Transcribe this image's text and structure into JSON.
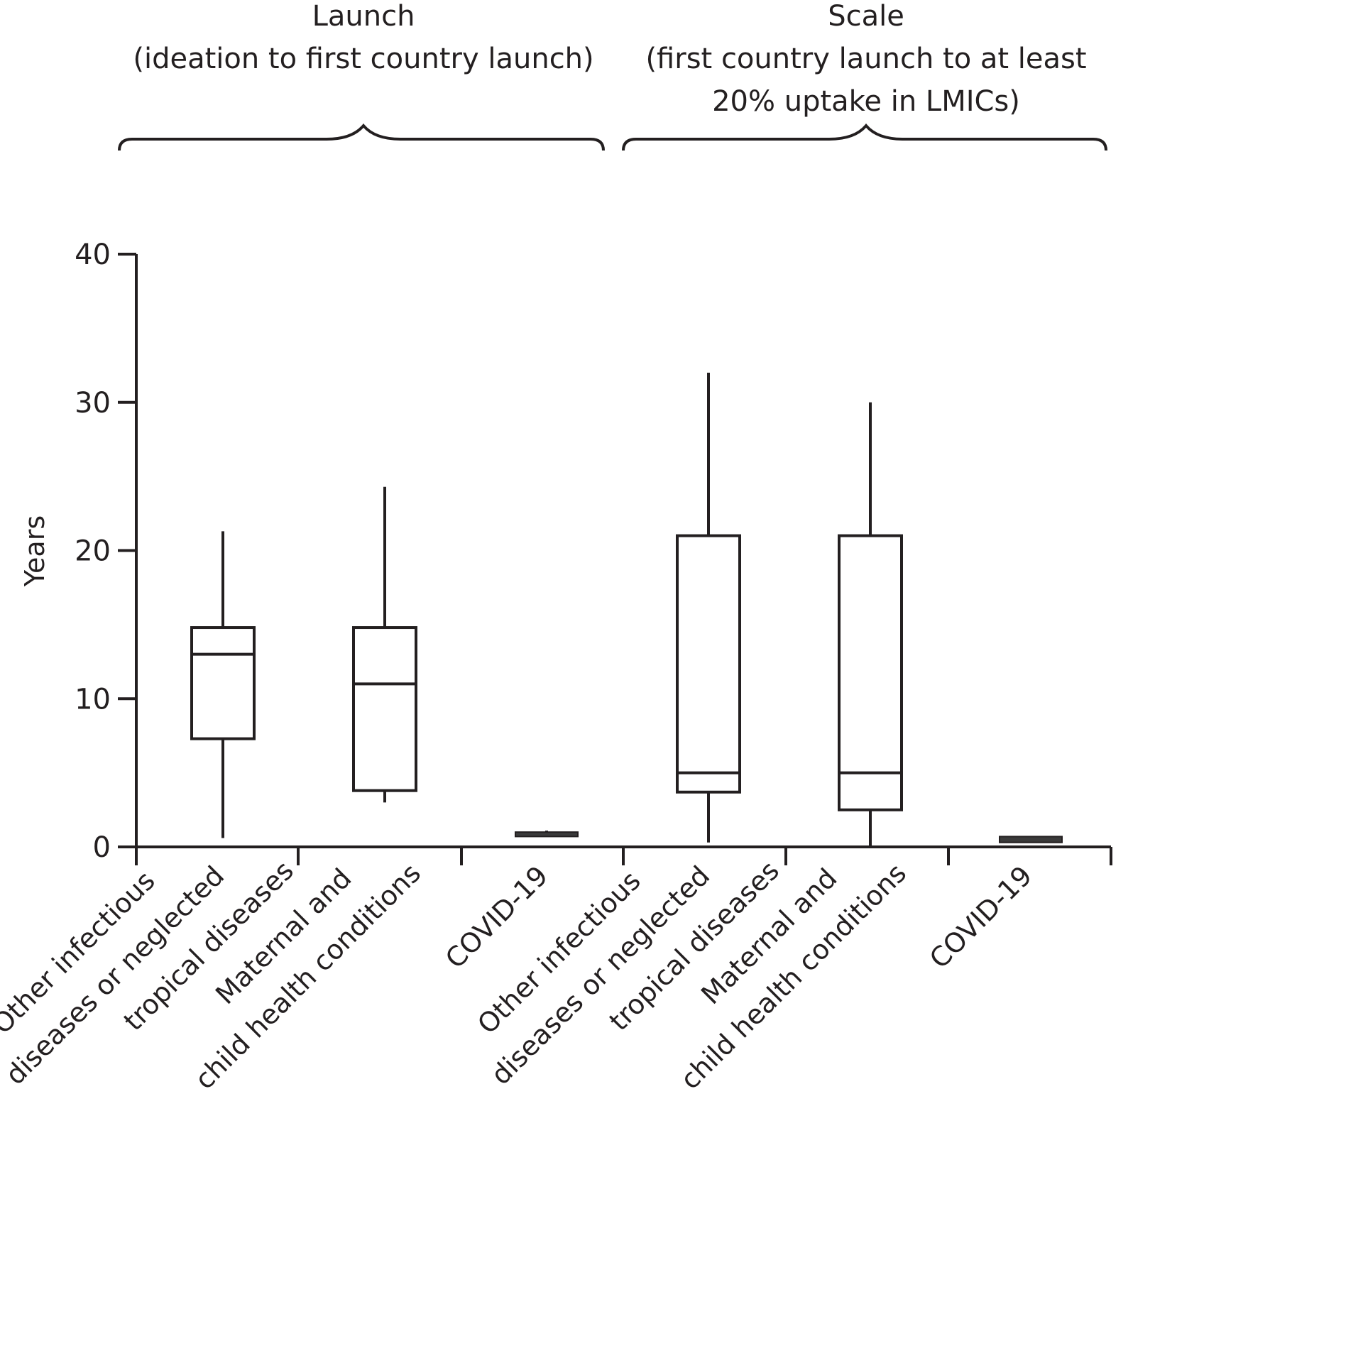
{
  "chart_data": {
    "type": "boxplot",
    "ylabel": "Years",
    "ylim": [
      0,
      40
    ],
    "yticks": [
      0,
      10,
      20,
      30,
      40
    ],
    "groups": [
      {
        "title": "Launch",
        "subtitle": [
          "(ideation to first country launch)"
        ],
        "boxes": [
          {
            "label": [
              "Other infectious",
              "diseases or neglected",
              "tropical diseases"
            ],
            "color": "#f8b59c",
            "min": 0.6,
            "q1": 7.3,
            "median": 13,
            "q3": 14.8,
            "max": 21.3
          },
          {
            "label": [
              "Maternal and",
              "child health conditions"
            ],
            "color": "#9dadd5",
            "min": 3.0,
            "q1": 3.8,
            "median": 11,
            "q3": 14.8,
            "max": 24.3
          },
          {
            "label": [
              "COVID-19"
            ],
            "color": "#3a3a3a",
            "min": 0.7,
            "q1": 0.7,
            "median": 0.9,
            "q3": 1.0,
            "max": 1.1
          }
        ]
      },
      {
        "title": "Scale",
        "subtitle": [
          "(first country launch to at least",
          "20% uptake in LMICs)"
        ],
        "boxes": [
          {
            "label": [
              "Other infectious",
              "diseases or neglected",
              "tropical diseases"
            ],
            "color": "#f8b59c",
            "min": 0.3,
            "q1": 3.7,
            "median": 5,
            "q3": 21,
            "max": 32
          },
          {
            "label": [
              "Maternal and",
              "child health conditions"
            ],
            "color": "#9dadd5",
            "min": 0,
            "q1": 2.5,
            "median": 5,
            "q3": 21,
            "max": 30
          },
          {
            "label": [
              "COVID-19"
            ],
            "color": "#3a3a3a",
            "min": 0.3,
            "q1": 0.3,
            "median": 0.5,
            "q3": 0.7,
            "max": 0.7
          }
        ]
      }
    ]
  }
}
